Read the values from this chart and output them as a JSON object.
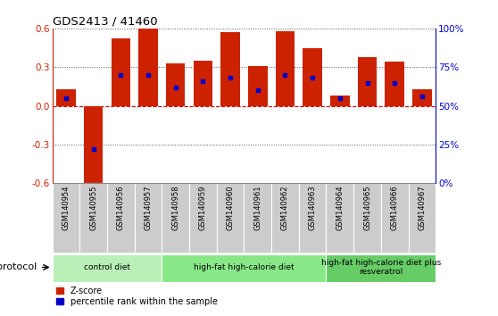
{
  "title": "GDS2413 / 41460",
  "samples": [
    "GSM140954",
    "GSM140955",
    "GSM140956",
    "GSM140957",
    "GSM140958",
    "GSM140959",
    "GSM140960",
    "GSM140961",
    "GSM140962",
    "GSM140963",
    "GSM140964",
    "GSM140965",
    "GSM140966",
    "GSM140967"
  ],
  "zscore": [
    0.13,
    -0.62,
    0.52,
    0.6,
    0.33,
    0.35,
    0.57,
    0.31,
    0.58,
    0.45,
    0.08,
    0.38,
    0.34,
    0.13
  ],
  "percentile": [
    55,
    22,
    70,
    70,
    62,
    66,
    68,
    60,
    70,
    68,
    55,
    65,
    65,
    56
  ],
  "bar_color": "#cc2200",
  "dot_color": "#0000cc",
  "bg_color": "#ffffff",
  "ylim": [
    -0.6,
    0.6
  ],
  "yticks": [
    -0.6,
    -0.3,
    0.0,
    0.3,
    0.6
  ],
  "right_ylim": [
    0,
    100
  ],
  "right_yticks": [
    0,
    25,
    50,
    75,
    100
  ],
  "right_yticklabels": [
    "0%",
    "25%",
    "50%",
    "75%",
    "100%"
  ],
  "protocol_groups": [
    {
      "label": "control diet",
      "start": 0,
      "end": 4,
      "color": "#b8f0b8"
    },
    {
      "label": "high-fat high-calorie diet",
      "start": 4,
      "end": 10,
      "color": "#88e888"
    },
    {
      "label": "high-fat high-calorie diet plus\nresveratrol",
      "start": 10,
      "end": 14,
      "color": "#66cc66"
    }
  ],
  "xlabel_protocol": "protocol",
  "legend_zscore": "Z-score",
  "legend_percentile": "percentile rank within the sample",
  "bar_width": 0.7,
  "axis_color_left": "#cc2200",
  "axis_color_right": "#0000cc",
  "tick_box_color": "#cccccc",
  "dotted_line_color": "#555555",
  "zero_line_color": "#cc0000"
}
